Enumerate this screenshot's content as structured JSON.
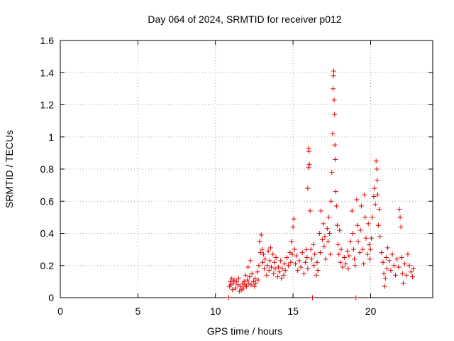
{
  "chart_data": {
    "type": "scatter",
    "title": "Day 064 of 2024, SRMTID for receiver p012",
    "xlabel": "GPS time / hours",
    "ylabel": "SRMTID / TECUs",
    "xlim": [
      0,
      24
    ],
    "ylim": [
      0,
      1.6
    ],
    "xticks": [
      0,
      5,
      10,
      15,
      20
    ],
    "xtick_labels": [
      "0",
      "5",
      "10",
      "15",
      "20"
    ],
    "yticks": [
      0,
      0.2,
      0.4,
      0.6,
      0.8,
      1.0,
      1.2,
      1.4,
      1.6
    ],
    "ytick_labels": [
      "0",
      "0.2",
      "0.4",
      "0.6",
      "0.8",
      "1",
      "1.2",
      "1.4",
      "1.6"
    ],
    "grid": true,
    "marker": "plus",
    "marker_color": "#e00000",
    "series": [
      {
        "name": "p012",
        "points": [
          [
            10.85,
            0.0
          ],
          [
            10.9,
            0.07
          ],
          [
            10.95,
            0.1
          ],
          [
            11.0,
            0.08
          ],
          [
            11.05,
            0.12
          ],
          [
            11.1,
            0.05
          ],
          [
            11.15,
            0.09
          ],
          [
            11.2,
            0.11
          ],
          [
            11.3,
            0.06
          ],
          [
            11.35,
            0.1
          ],
          [
            11.45,
            0.08
          ],
          [
            11.5,
            0.12
          ],
          [
            11.55,
            0.04
          ],
          [
            11.6,
            0.07
          ],
          [
            11.7,
            0.05
          ],
          [
            11.75,
            0.09
          ],
          [
            11.8,
            0.06
          ],
          [
            11.85,
            0.1
          ],
          [
            11.9,
            0.08
          ],
          [
            11.95,
            0.14
          ],
          [
            12.0,
            0.07
          ],
          [
            12.05,
            0.11
          ],
          [
            12.1,
            0.19
          ],
          [
            12.15,
            0.09
          ],
          [
            12.2,
            0.13
          ],
          [
            12.25,
            0.23
          ],
          [
            12.3,
            0.08
          ],
          [
            12.35,
            0.15
          ],
          [
            12.45,
            0.1
          ],
          [
            12.5,
            0.07
          ],
          [
            12.55,
            0.12
          ],
          [
            12.6,
            0.09
          ],
          [
            12.7,
            0.16
          ],
          [
            12.75,
            0.11
          ],
          [
            12.8,
            0.2
          ],
          [
            12.85,
            0.35
          ],
          [
            12.9,
            0.28
          ],
          [
            12.95,
            0.39
          ],
          [
            13.0,
            0.3
          ],
          [
            13.05,
            0.22
          ],
          [
            13.1,
            0.27
          ],
          [
            13.15,
            0.18
          ],
          [
            13.2,
            0.24
          ],
          [
            13.3,
            0.14
          ],
          [
            13.35,
            0.2
          ],
          [
            13.4,
            0.29
          ],
          [
            13.45,
            0.17
          ],
          [
            13.5,
            0.23
          ],
          [
            13.55,
            0.31
          ],
          [
            13.6,
            0.19
          ],
          [
            13.7,
            0.27
          ],
          [
            13.75,
            0.15
          ],
          [
            13.8,
            0.22
          ],
          [
            13.85,
            0.18
          ],
          [
            13.9,
            0.25
          ],
          [
            14.0,
            0.13
          ],
          [
            14.05,
            0.19
          ],
          [
            14.1,
            0.16
          ],
          [
            14.2,
            0.23
          ],
          [
            14.25,
            0.12
          ],
          [
            14.3,
            0.18
          ],
          [
            14.4,
            0.14
          ],
          [
            14.45,
            0.21
          ],
          [
            14.5,
            0.17
          ],
          [
            14.6,
            0.25
          ],
          [
            14.7,
            0.2
          ],
          [
            14.8,
            0.28
          ],
          [
            14.85,
            0.22
          ],
          [
            14.9,
            0.35
          ],
          [
            14.95,
            0.27
          ],
          [
            15.0,
            0.44
          ],
          [
            15.05,
            0.49
          ],
          [
            15.1,
            0.3
          ],
          [
            15.15,
            0.21
          ],
          [
            15.2,
            0.26
          ],
          [
            15.3,
            0.17
          ],
          [
            15.4,
            0.23
          ],
          [
            15.5,
            0.19
          ],
          [
            15.6,
            0.28
          ],
          [
            15.7,
            0.15
          ],
          [
            15.8,
            0.22
          ],
          [
            15.85,
            0.3
          ],
          [
            15.9,
            0.25
          ],
          [
            15.95,
            0.18
          ],
          [
            16.0,
            0.93
          ],
          [
            16.02,
            0.91
          ],
          [
            16.05,
            0.83
          ],
          [
            16.0,
            0.81
          ],
          [
            15.95,
            0.68
          ],
          [
            16.1,
            0.54
          ],
          [
            16.15,
            0.3
          ],
          [
            16.2,
            0.24
          ],
          [
            16.25,
            0.0
          ],
          [
            16.3,
            0.33
          ],
          [
            16.35,
            0.2
          ],
          [
            16.4,
            0.27
          ],
          [
            16.5,
            0.14
          ],
          [
            16.55,
            0.22
          ],
          [
            16.6,
            0.17
          ],
          [
            16.7,
            0.4
          ],
          [
            16.75,
            0.28
          ],
          [
            16.8,
            0.54
          ],
          [
            16.9,
            0.36
          ],
          [
            16.95,
            0.46
          ],
          [
            17.0,
            0.32
          ],
          [
            17.05,
            0.38
          ],
          [
            17.1,
            0.24
          ],
          [
            17.2,
            0.43
          ],
          [
            17.25,
            0.35
          ],
          [
            17.3,
            0.5
          ],
          [
            17.35,
            0.4
          ],
          [
            17.4,
            0.27
          ],
          [
            17.45,
            0.6
          ],
          [
            17.5,
            0.78
          ],
          [
            17.55,
            1.02
          ],
          [
            17.58,
            1.3
          ],
          [
            17.6,
            1.38
          ],
          [
            17.62,
            1.41
          ],
          [
            17.65,
            1.23
          ],
          [
            17.68,
            1.14
          ],
          [
            17.7,
            0.95
          ],
          [
            17.72,
            0.86
          ],
          [
            17.75,
            0.66
          ],
          [
            17.8,
            0.57
          ],
          [
            17.85,
            0.45
          ],
          [
            17.9,
            0.33
          ],
          [
            17.95,
            0.27
          ],
          [
            18.0,
            0.42
          ],
          [
            18.05,
            0.22
          ],
          [
            18.1,
            0.3
          ],
          [
            18.2,
            0.19
          ],
          [
            18.3,
            0.25
          ],
          [
            18.4,
            0.21
          ],
          [
            18.5,
            0.29
          ],
          [
            18.55,
            0.18
          ],
          [
            18.6,
            0.26
          ],
          [
            18.7,
            0.35
          ],
          [
            18.8,
            0.54
          ],
          [
            18.85,
            0.4
          ],
          [
            18.9,
            0.3
          ],
          [
            18.95,
            0.24
          ],
          [
            19.0,
            0.2
          ],
          [
            19.05,
            0.0
          ],
          [
            19.1,
            0.61
          ],
          [
            19.15,
            0.45
          ],
          [
            19.2,
            0.35
          ],
          [
            19.3,
            0.28
          ],
          [
            19.35,
            0.42
          ],
          [
            19.4,
            0.57
          ],
          [
            19.5,
            0.3
          ],
          [
            19.55,
            0.21
          ],
          [
            19.6,
            0.64
          ],
          [
            19.65,
            0.5
          ],
          [
            19.7,
            0.37
          ],
          [
            19.8,
            0.27
          ],
          [
            19.85,
            0.46
          ],
          [
            19.9,
            0.33
          ],
          [
            19.95,
            0.24
          ],
          [
            20.0,
            0.3
          ],
          [
            20.05,
            0.37
          ],
          [
            20.1,
            0.5
          ],
          [
            20.2,
            0.63
          ],
          [
            20.25,
            0.68
          ],
          [
            20.3,
            0.58
          ],
          [
            20.35,
            0.85
          ],
          [
            20.4,
            0.8
          ],
          [
            20.42,
            0.73
          ],
          [
            20.45,
            0.64
          ],
          [
            20.5,
            0.45
          ],
          [
            20.55,
            0.55
          ],
          [
            20.6,
            0.38
          ],
          [
            20.7,
            0.28
          ],
          [
            20.8,
            0.22
          ],
          [
            20.85,
            0.15
          ],
          [
            20.9,
            0.07
          ],
          [
            20.95,
            0.12
          ],
          [
            21.0,
            0.25
          ],
          [
            21.05,
            0.18
          ],
          [
            21.1,
            0.31
          ],
          [
            21.2,
            0.23
          ],
          [
            21.3,
            0.17
          ],
          [
            21.4,
            0.27
          ],
          [
            21.5,
            0.2
          ],
          [
            21.6,
            0.14
          ],
          [
            21.7,
            0.24
          ],
          [
            21.8,
            0.19
          ],
          [
            21.85,
            0.55
          ],
          [
            21.9,
            0.5
          ],
          [
            21.95,
            0.44
          ],
          [
            22.0,
            0.25
          ],
          [
            22.05,
            0.15
          ],
          [
            22.1,
            0.09
          ],
          [
            22.2,
            0.21
          ],
          [
            22.3,
            0.14
          ],
          [
            22.4,
            0.27
          ],
          [
            22.5,
            0.2
          ],
          [
            22.6,
            0.16
          ],
          [
            22.7,
            0.13
          ],
          [
            22.75,
            0.18
          ]
        ]
      }
    ]
  }
}
